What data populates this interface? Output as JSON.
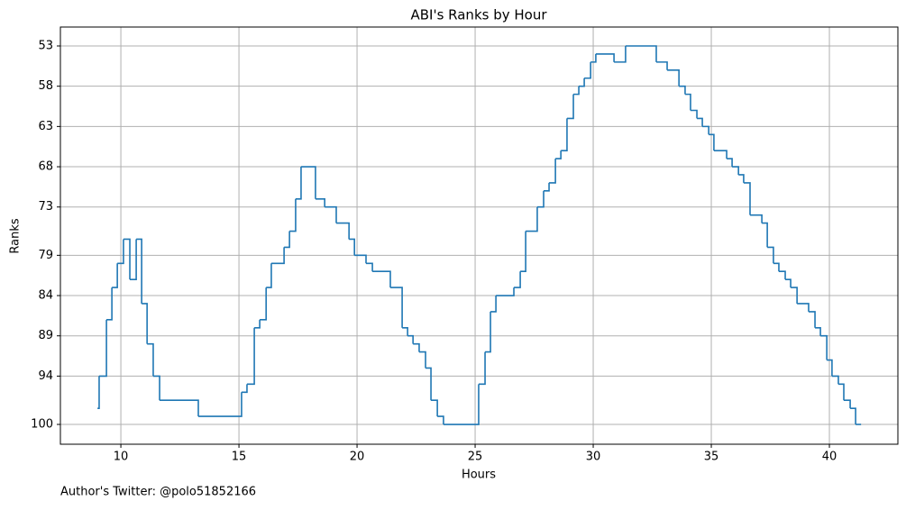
{
  "chart_data": {
    "type": "line",
    "step": "post",
    "title": "ABI's Ranks by Hour",
    "x_label": "Hours",
    "y_label": "Ranks",
    "footnote": "Author's Twitter: @polo51852166",
    "x": [
      9.01,
      9.08,
      9.39,
      9.62,
      9.85,
      10.11,
      10.38,
      10.65,
      10.88,
      11.11,
      11.37,
      11.64,
      13.28,
      15.11,
      15.34,
      15.65,
      15.88,
      16.15,
      16.37,
      16.91,
      17.14,
      17.4,
      17.63,
      18.24,
      18.63,
      19.12,
      19.66,
      19.89,
      20.38,
      20.65,
      21.41,
      21.91,
      22.14,
      22.37,
      22.63,
      22.9,
      23.13,
      23.4,
      23.66,
      25.15,
      25.42,
      25.65,
      25.88,
      26.64,
      26.91,
      27.14,
      27.63,
      27.9,
      28.13,
      28.4,
      28.63,
      28.89,
      29.16,
      29.39,
      29.62,
      29.89,
      30.11,
      30.88,
      31.37,
      32.67,
      33.13,
      33.63,
      33.89,
      34.12,
      34.39,
      34.62,
      34.89,
      35.11,
      35.65,
      35.88,
      36.15,
      36.37,
      36.64,
      37.14,
      37.37,
      37.63,
      37.86,
      38.13,
      38.36,
      38.63,
      39.12,
      39.39,
      39.62,
      39.89,
      40.11,
      40.38,
      40.61,
      40.88,
      41.11,
      41.34
    ],
    "series": [
      {
        "color": "#1f77b4",
        "values": [
          98,
          94,
          87,
          83,
          80,
          77,
          82,
          77,
          85,
          90,
          94,
          97,
          99,
          96,
          95,
          88,
          87,
          83,
          80,
          78,
          76,
          72,
          68,
          72,
          73,
          75,
          77,
          79,
          80,
          81,
          83,
          88,
          89,
          90,
          91,
          93,
          97,
          99,
          100,
          95,
          91,
          86,
          84,
          83,
          81,
          76,
          73,
          71,
          70,
          67,
          66,
          62,
          59,
          58,
          57,
          55,
          54,
          55,
          53,
          55,
          56,
          58,
          59,
          61,
          62,
          63,
          64,
          66,
          67,
          68,
          69,
          70,
          74,
          75,
          78,
          80,
          81,
          82,
          83,
          85,
          86,
          88,
          89,
          92,
          94,
          95,
          97,
          98,
          100,
          100
        ]
      }
    ],
    "xlim": [
      7.44,
      42.9
    ],
    "ylim": [
      102.46,
      50.65
    ],
    "xticks": [
      10,
      15,
      20,
      25,
      30,
      35,
      40
    ],
    "yticks": [
      53,
      58,
      63,
      68,
      73,
      79,
      84,
      89,
      94,
      100
    ],
    "grid": true
  }
}
